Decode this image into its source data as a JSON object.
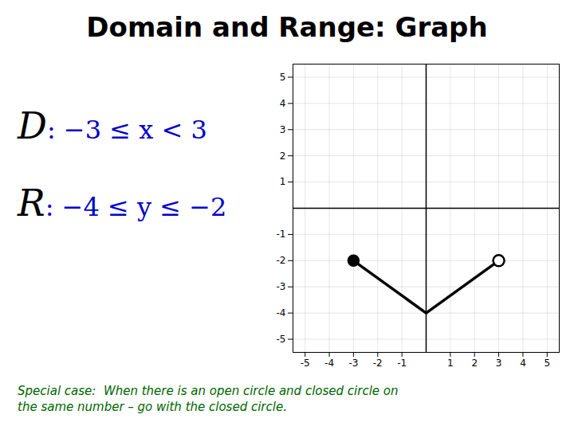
{
  "chart_data": {
    "type": "line",
    "title": "Domain and Range: Graph",
    "x": [
      -3,
      0,
      3
    ],
    "values": [
      -2,
      -4,
      -2
    ],
    "color": "#000000",
    "endpoints": [
      {
        "x": -3,
        "y": -2,
        "marker": "filled_circle"
      },
      {
        "x": 3,
        "y": -2,
        "marker": "open_circle"
      }
    ],
    "xlim": [
      -5.5,
      5.5
    ],
    "ylim": [
      -5.5,
      5.5
    ],
    "xticks": [
      -5,
      -4,
      -3,
      -2,
      -1,
      1,
      2,
      3,
      4,
      5
    ],
    "yticks": [
      -5,
      -4,
      -3,
      -2,
      -1,
      1,
      2,
      3,
      4,
      5
    ],
    "grid": true,
    "annotations": [
      {
        "parts": [
          {
            "text": "D",
            "color": "#000000"
          },
          {
            "text": ": −3 ≤ x < 3",
            "color": "#0000cc"
          }
        ]
      },
      {
        "parts": [
          {
            "text": "R",
            "color": "#000000"
          },
          {
            "text": ": −4 ≤ y ≤ −2",
            "color": "#0000cc"
          }
        ]
      },
      {
        "lines": [
          "Special case:  When there is an open circle and closed circle on",
          "the same number – go with the closed circle."
        ],
        "color": "#006600"
      }
    ]
  }
}
